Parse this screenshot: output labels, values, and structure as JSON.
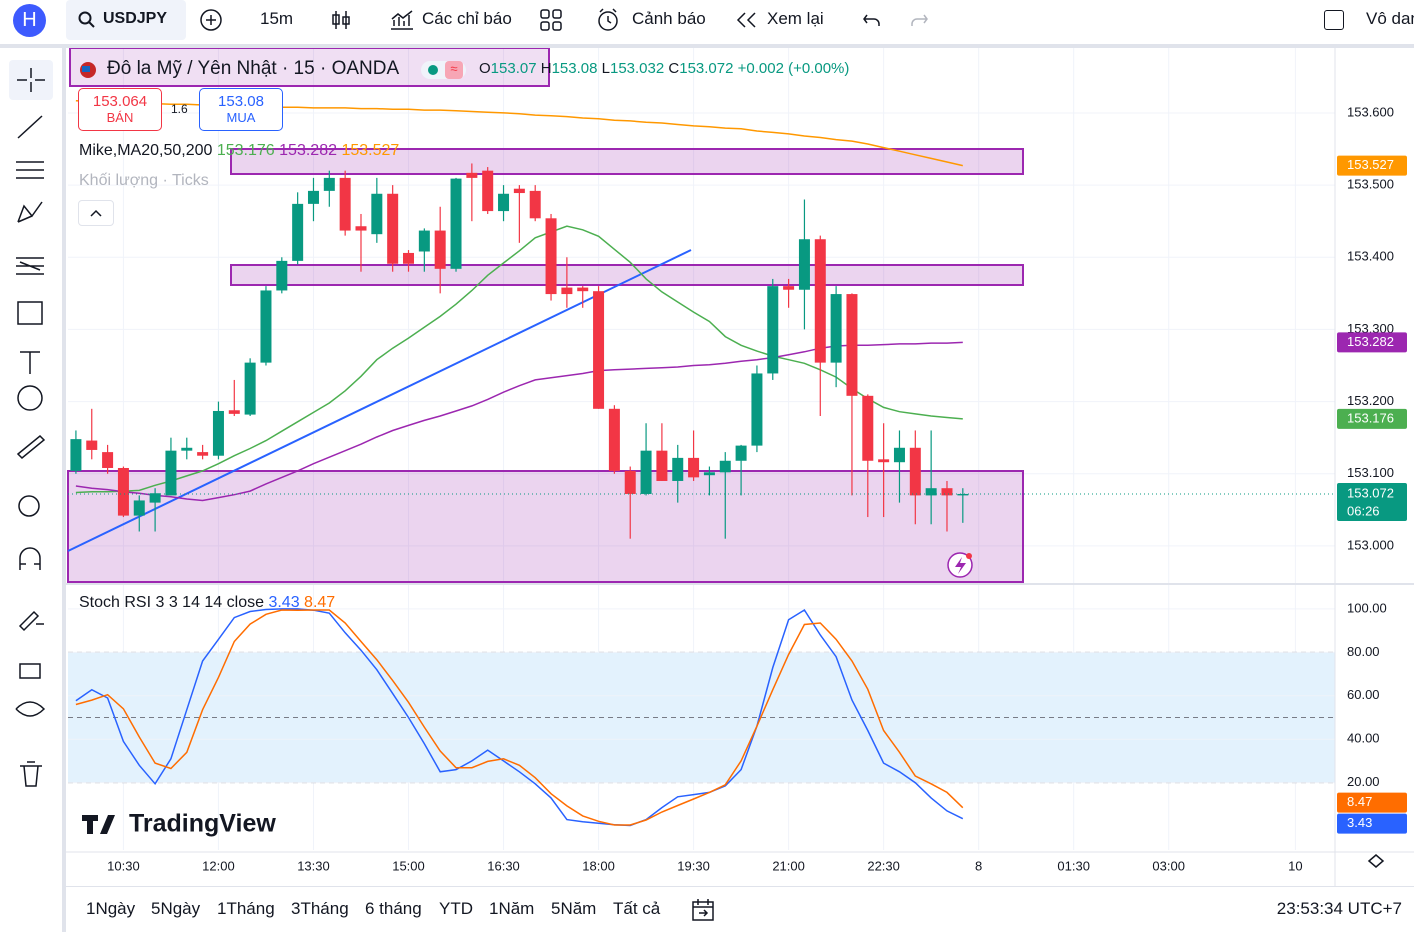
{
  "toolbar": {
    "avatar": "H",
    "symbol": "USDJPY",
    "interval": "15m",
    "indicators": "Các chỉ báo",
    "alerts": "Cảnh báo",
    "replay": "Xem lại",
    "user": "Vô danh"
  },
  "trade": {
    "sell_price": 153.064,
    "sell_label": "BÁN",
    "spread": "1.6",
    "buy_price": 153.08,
    "buy_label": "MUA"
  },
  "ranges": [
    "1Ngày",
    "5Ngày",
    "1Tháng",
    "3Tháng",
    "6 tháng",
    "YTD",
    "1Năm",
    "5Năm",
    "Tất cả"
  ],
  "clock": "23:53:34 UTC+7",
  "brand": "TradingView",
  "chart_data": [
    {
      "type": "candlestick",
      "title": "Đô la Mỹ / Yên Nhật · 15 · OANDA",
      "ohlc_letters": [
        "O",
        "H",
        "L",
        "C"
      ],
      "change": "+0.002 (+0.00%)",
      "ma_label": "Mike,MA20,50,200",
      "volume_label": "Khối lượng · Ticks",
      "countdown": "06:26",
      "up_color": "#089981",
      "down_color": "#f23645",
      "categories": [
        null,
        null,
        null,
        "10:30",
        null,
        null,
        null,
        null,
        null,
        "12:00",
        null,
        null,
        null,
        null,
        null,
        "13:30",
        null,
        null,
        null,
        null,
        null,
        "15:00",
        null,
        null,
        null,
        null,
        null,
        "16:30",
        null,
        null,
        null,
        null,
        null,
        "18:00",
        null,
        null,
        null,
        null,
        null,
        "19:30",
        null,
        null,
        null,
        null,
        null,
        "21:00",
        null,
        null,
        null,
        null,
        null,
        "22:30",
        null,
        null,
        null,
        null,
        null,
        "8",
        null,
        null,
        null,
        null,
        null,
        "01:30",
        null,
        null,
        null,
        null,
        null,
        "03:00",
        null,
        null,
        null,
        null,
        null,
        null,
        null,
        "10",
        null,
        null
      ],
      "open": [
        153.104,
        153.146,
        153.13,
        153.108,
        153.042,
        153.06,
        153.07,
        153.132,
        153.13,
        153.125,
        153.188,
        153.182,
        153.254,
        153.354,
        153.395,
        153.474,
        153.492,
        153.51,
        153.443,
        153.432,
        153.488,
        153.406,
        153.408,
        153.437,
        153.384,
        153.517,
        153.52,
        153.464,
        153.495,
        153.492,
        153.454,
        153.358,
        153.358,
        153.353,
        153.19,
        153.104,
        153.072,
        153.132,
        153.09,
        153.122,
        153.098,
        153.102,
        153.118,
        153.139,
        153.239,
        153.36,
        153.355,
        153.425,
        153.254,
        153.349,
        153.208,
        153.12,
        153.116,
        153.136,
        153.07,
        153.08,
        153.07,
        null,
        null,
        null,
        null,
        null,
        null,
        null,
        null,
        null,
        null,
        null,
        null,
        null,
        null,
        null,
        null,
        null,
        null,
        null,
        null,
        null,
        null,
        null
      ],
      "high": [
        153.16,
        153.19,
        153.14,
        153.11,
        153.07,
        153.08,
        153.15,
        153.15,
        153.14,
        153.2,
        153.23,
        153.26,
        153.36,
        153.4,
        153.49,
        153.51,
        153.52,
        153.52,
        153.46,
        153.51,
        153.5,
        153.41,
        153.44,
        153.47,
        153.51,
        153.53,
        153.525,
        153.5,
        153.5,
        153.5,
        153.46,
        153.4,
        153.36,
        153.36,
        153.195,
        153.11,
        153.17,
        153.17,
        153.14,
        153.16,
        153.11,
        153.13,
        153.14,
        153.25,
        153.37,
        153.37,
        153.48,
        153.43,
        153.36,
        153.35,
        153.21,
        153.17,
        153.16,
        153.16,
        153.16,
        153.09,
        153.08,
        null,
        null,
        null,
        null,
        null,
        null,
        null,
        null,
        null,
        null,
        null,
        null,
        null,
        null,
        null,
        null,
        null,
        null,
        null,
        null,
        null,
        null,
        null
      ],
      "low": [
        153.1,
        153.12,
        153.1,
        153.04,
        153.02,
        153.02,
        153.07,
        153.12,
        153.12,
        153.12,
        153.18,
        153.18,
        153.25,
        153.35,
        153.39,
        153.45,
        153.47,
        153.43,
        153.38,
        153.42,
        153.38,
        153.38,
        153.38,
        153.35,
        153.38,
        153.45,
        153.46,
        153.45,
        153.42,
        153.45,
        153.34,
        153.33,
        153.33,
        153.19,
        153.1,
        153.01,
        153.07,
        153.09,
        153.06,
        153.09,
        153.07,
        153.01,
        153.07,
        153.13,
        153.23,
        153.33,
        153.3,
        153.18,
        153.22,
        153.07,
        153.04,
        153.04,
        153.06,
        153.03,
        153.03,
        153.02,
        153.032,
        null,
        null,
        null,
        null,
        null,
        null,
        null,
        null,
        null,
        null,
        null,
        null,
        null,
        null,
        null,
        null,
        null,
        null,
        null,
        null,
        null,
        null,
        null
      ],
      "close": [
        153.148,
        153.133,
        153.108,
        153.042,
        153.063,
        153.073,
        153.132,
        153.136,
        153.125,
        153.187,
        153.183,
        153.254,
        153.354,
        153.395,
        153.474,
        153.492,
        153.51,
        153.437,
        153.437,
        153.488,
        153.391,
        153.391,
        153.437,
        153.384,
        153.509,
        153.51,
        153.464,
        153.488,
        153.489,
        153.454,
        153.349,
        153.349,
        153.353,
        153.19,
        153.104,
        153.072,
        153.132,
        153.09,
        153.122,
        153.095,
        153.102,
        153.118,
        153.139,
        153.239,
        153.36,
        153.355,
        153.425,
        153.254,
        153.349,
        153.208,
        153.118,
        153.116,
        153.136,
        153.07,
        153.08,
        153.07,
        153.072,
        null,
        null,
        null,
        null,
        null,
        null,
        null,
        null,
        null,
        null,
        null,
        null,
        null,
        null,
        null,
        null,
        null,
        null,
        null,
        null,
        null,
        null,
        null
      ],
      "lines": [
        {
          "color": "#4caf50",
          "values": [
            153.074,
            153.075,
            153.075,
            153.076,
            153.077,
            153.084,
            153.09,
            153.097,
            153.104,
            153.114,
            153.125,
            153.135,
            153.146,
            153.159,
            153.172,
            153.185,
            153.198,
            153.215,
            153.235,
            153.258,
            153.274,
            153.288,
            153.303,
            153.318,
            153.335,
            153.354,
            153.375,
            153.392,
            153.409,
            153.427,
            153.435,
            153.443,
            153.438,
            153.429,
            153.411,
            153.393,
            153.37,
            153.352,
            153.338,
            153.324,
            153.311,
            153.29,
            153.278,
            153.27,
            153.263,
            153.258,
            153.253,
            153.244,
            153.234,
            153.218,
            153.204,
            153.192,
            153.186,
            153.183,
            153.18,
            153.178,
            153.176,
            null,
            null,
            null,
            null,
            null,
            null,
            null,
            null,
            null,
            null,
            null,
            null,
            null,
            null,
            null,
            null,
            null,
            null,
            null,
            null,
            null,
            null,
            null
          ]
        },
        {
          "color": "#9c27b0",
          "values": [
            153.083,
            153.08,
            153.078,
            153.075,
            153.073,
            153.07,
            153.068,
            153.065,
            153.063,
            153.067,
            153.071,
            153.076,
            153.086,
            153.095,
            153.104,
            153.114,
            153.123,
            153.132,
            153.141,
            153.151,
            153.16,
            153.167,
            153.174,
            153.18,
            153.187,
            153.194,
            153.203,
            153.213,
            153.222,
            153.23,
            153.233,
            153.236,
            153.239,
            153.243,
            153.244,
            153.245,
            153.246,
            153.247,
            153.248,
            153.25,
            153.251,
            153.253,
            153.256,
            153.258,
            153.261,
            153.265,
            153.269,
            153.274,
            153.277,
            153.278,
            153.278,
            153.279,
            153.28,
            153.28,
            153.281,
            153.281,
            153.282,
            null,
            null,
            null,
            null,
            null,
            null,
            null,
            null,
            null,
            null,
            null,
            null,
            null,
            null,
            null,
            null,
            null,
            null,
            null,
            null,
            null,
            null,
            null
          ]
        },
        {
          "color": "#ff9800",
          "values": [
            153.617,
            153.616,
            153.615,
            153.615,
            153.614,
            153.613,
            153.612,
            153.612,
            153.611,
            153.611,
            153.61,
            153.61,
            153.609,
            153.608,
            153.608,
            153.607,
            153.607,
            153.607,
            153.606,
            153.606,
            153.605,
            153.605,
            153.604,
            153.604,
            153.603,
            153.602,
            153.601,
            153.6,
            153.599,
            153.597,
            153.596,
            153.595,
            153.593,
            153.592,
            153.59,
            153.589,
            153.587,
            153.586,
            153.584,
            153.582,
            153.581,
            153.579,
            153.578,
            153.575,
            153.573,
            153.571,
            153.568,
            153.566,
            153.563,
            153.561,
            153.557,
            153.552,
            153.547,
            153.542,
            153.537,
            153.532,
            153.527,
            null,
            null,
            null,
            null,
            null,
            null,
            null,
            null,
            null,
            null,
            null,
            null,
            null,
            null,
            null,
            null,
            null,
            null,
            null,
            null,
            null,
            null,
            null
          ]
        }
      ],
      "ylim": [
        152.95,
        153.69
      ],
      "yticks": [
        {
          "value": 153.6,
          "label": "153.600"
        },
        {
          "value": 153.5,
          "label": "153.500"
        },
        {
          "value": 153.4,
          "label": "153.400"
        },
        {
          "value": 153.3,
          "label": "153.300"
        },
        {
          "value": 153.2,
          "label": "153.200"
        },
        {
          "value": 153.1,
          "label": "153.100"
        },
        {
          "value": 153.0,
          "label": "153.000"
        }
      ],
      "grid": true
    },
    {
      "type": "line",
      "title": "Stoch RSI 3 3 14 14 close",
      "series": [
        {
          "color": "#2962ff",
          "values": [
            57.7,
            62.8,
            59,
            39,
            28,
            19.5,
            31,
            53.6,
            76,
            86,
            96,
            98.8,
            99.7,
            100,
            100,
            99.4,
            98,
            89,
            81,
            72,
            61,
            50,
            38,
            25,
            26,
            30,
            35,
            30,
            25,
            19.5,
            13,
            3,
            2,
            1.3,
            0.6,
            0.3,
            3,
            8.5,
            13.5,
            14.5,
            15.5,
            18.5,
            26,
            46,
            73,
            95,
            99.5,
            88,
            78,
            58,
            44,
            29,
            25,
            20,
            13,
            7,
            3.43,
            null,
            null,
            null,
            null,
            null,
            null,
            null,
            null,
            null,
            null,
            null,
            null,
            null,
            null,
            null,
            null,
            null,
            null,
            null,
            null,
            null,
            null,
            null
          ]
        },
        {
          "color": "#ff6d00",
          "values": [
            56,
            58,
            60.5,
            54,
            41,
            29,
            26.5,
            34,
            53.6,
            68.5,
            85,
            93,
            97.5,
            99.5,
            99.4,
            99.5,
            99.5,
            93.5,
            85,
            76.6,
            67,
            57,
            45.6,
            34.6,
            26.9,
            26.9,
            29.8,
            31,
            28,
            22.3,
            14.9,
            9.3,
            4.7,
            2.2,
            0.5,
            0.5,
            2.8,
            6.5,
            9.5,
            12.5,
            15.5,
            19,
            30,
            46,
            62.8,
            79,
            92.8,
            93.5,
            86,
            76,
            63,
            44,
            34,
            23,
            19.5,
            15.5,
            8.47,
            null,
            null,
            null,
            null,
            null,
            null,
            null,
            null,
            null,
            null,
            null,
            null,
            null,
            null,
            null,
            null,
            null,
            null,
            null,
            null,
            null,
            null,
            null
          ]
        }
      ],
      "band": [
        20,
        80
      ],
      "midline": 50,
      "band_color": "#e3f2fd",
      "ylim": [
        -11,
        111
      ],
      "yticks": [
        {
          "value": 100,
          "label": "100.00"
        },
        {
          "value": 80,
          "label": "80.00"
        },
        {
          "value": 60,
          "label": "60.00"
        },
        {
          "value": 40,
          "label": "40.00"
        },
        {
          "value": 20,
          "label": "20.00"
        }
      ],
      "grid": true
    }
  ]
}
